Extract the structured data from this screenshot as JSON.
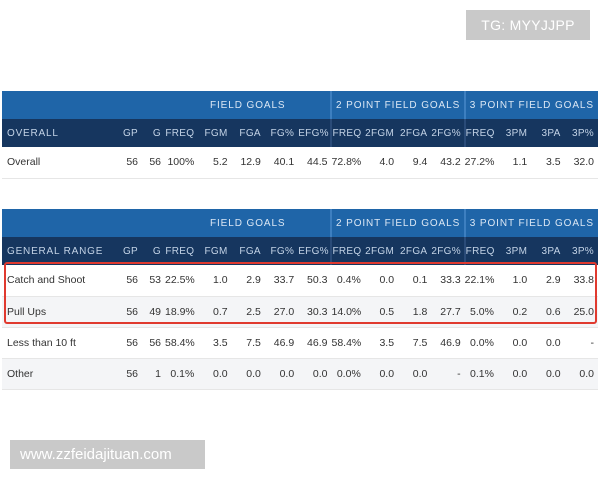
{
  "watermarks": {
    "top": "TG: MYYJJPP",
    "bottom": "www.zzfeidajituan.com"
  },
  "groups": {
    "field_goals": "FIELD GOALS",
    "two_point": "2 POINT FIELD GOALS",
    "three_point": "3 POINT FIELD GOALS"
  },
  "columns": [
    "GP",
    "G",
    "FREQ",
    "FGM",
    "FGA",
    "FG%",
    "EFG%",
    "FREQ",
    "2FGM",
    "2FGA",
    "2FG%",
    "FREQ",
    "3PM",
    "3PA",
    "3P%"
  ],
  "overall_table": {
    "label_header": "OVERALL",
    "rows": [
      {
        "label": "Overall",
        "values": [
          "56",
          "56",
          "100%",
          "5.2",
          "12.9",
          "40.1",
          "44.5",
          "72.8%",
          "4.0",
          "9.4",
          "43.2",
          "27.2%",
          "1.1",
          "3.5",
          "32.0"
        ]
      }
    ]
  },
  "range_table": {
    "label_header": "GENERAL RANGE",
    "rows": [
      {
        "label": "Catch and Shoot",
        "values": [
          "56",
          "53",
          "22.5%",
          "1.0",
          "2.9",
          "33.7",
          "50.3",
          "0.4%",
          "0.0",
          "0.1",
          "33.3",
          "22.1%",
          "1.0",
          "2.9",
          "33.8"
        ]
      },
      {
        "label": "Pull Ups",
        "values": [
          "56",
          "49",
          "18.9%",
          "0.7",
          "2.5",
          "27.0",
          "30.3",
          "14.0%",
          "0.5",
          "1.8",
          "27.7",
          "5.0%",
          "0.2",
          "0.6",
          "25.0"
        ]
      },
      {
        "label": "Less than 10 ft",
        "values": [
          "56",
          "56",
          "58.4%",
          "3.5",
          "7.5",
          "46.9",
          "46.9",
          "58.4%",
          "3.5",
          "7.5",
          "46.9",
          "0.0%",
          "0.0",
          "0.0",
          "-"
        ]
      },
      {
        "label": "Other",
        "values": [
          "56",
          "1",
          "0.1%",
          "0.0",
          "0.0",
          "0.0",
          "0.0",
          "0.0%",
          "0.0",
          "0.0",
          "-",
          "0.1%",
          "0.0",
          "0.0",
          "0.0"
        ]
      }
    ]
  },
  "colors": {
    "group_header": "#1f65a8",
    "column_header": "#16365f",
    "highlight": "#e03a2f"
  }
}
